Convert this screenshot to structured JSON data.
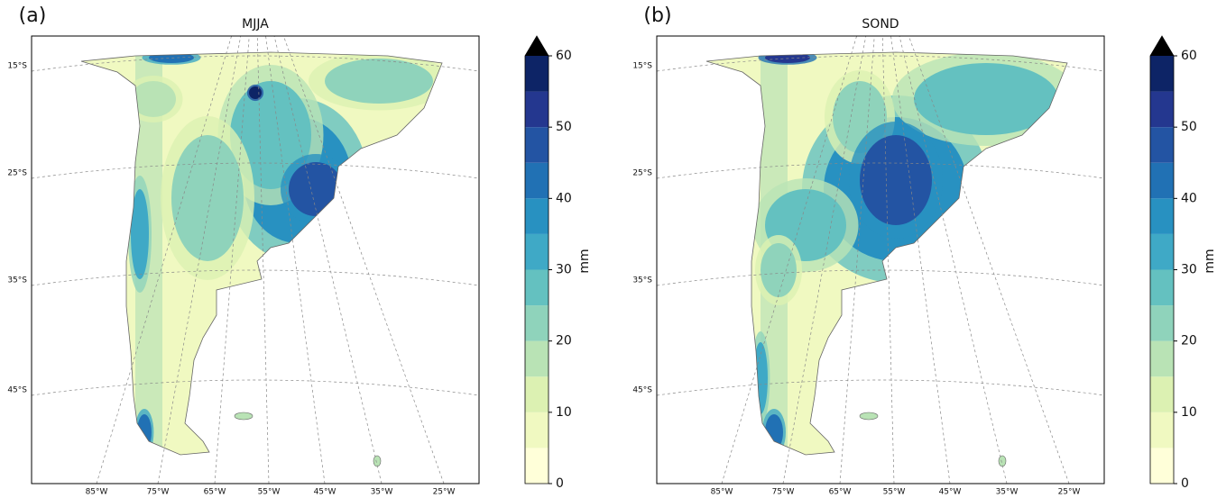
{
  "panels": [
    {
      "label": "(a)",
      "title": "MJJA"
    },
    {
      "label": "(b)",
      "title": "SOND"
    }
  ],
  "map": {
    "lat_labels": [
      "15°S",
      "25°S",
      "35°S",
      "45°S"
    ],
    "lon_labels": [
      "85°W",
      "75°W",
      "65°W",
      "55°W",
      "45°W",
      "35°W",
      "25°W"
    ]
  },
  "colorbar": {
    "label": "mm",
    "lim": [
      0,
      60
    ],
    "ticks": [
      0,
      10,
      20,
      30,
      40,
      50,
      60
    ],
    "levels": [
      0,
      5,
      10,
      15,
      20,
      25,
      30,
      35,
      40,
      45,
      50,
      55,
      60
    ],
    "colors": [
      "#ffffd9",
      "#f0f9c1",
      "#dcf1b2",
      "#b9e3b5",
      "#8fd3bb",
      "#64c1c0",
      "#3fa9c6",
      "#2891c1",
      "#2171b4",
      "#2354a3",
      "#24378f",
      "#0d2466"
    ],
    "extend_color": "#000000"
  }
}
